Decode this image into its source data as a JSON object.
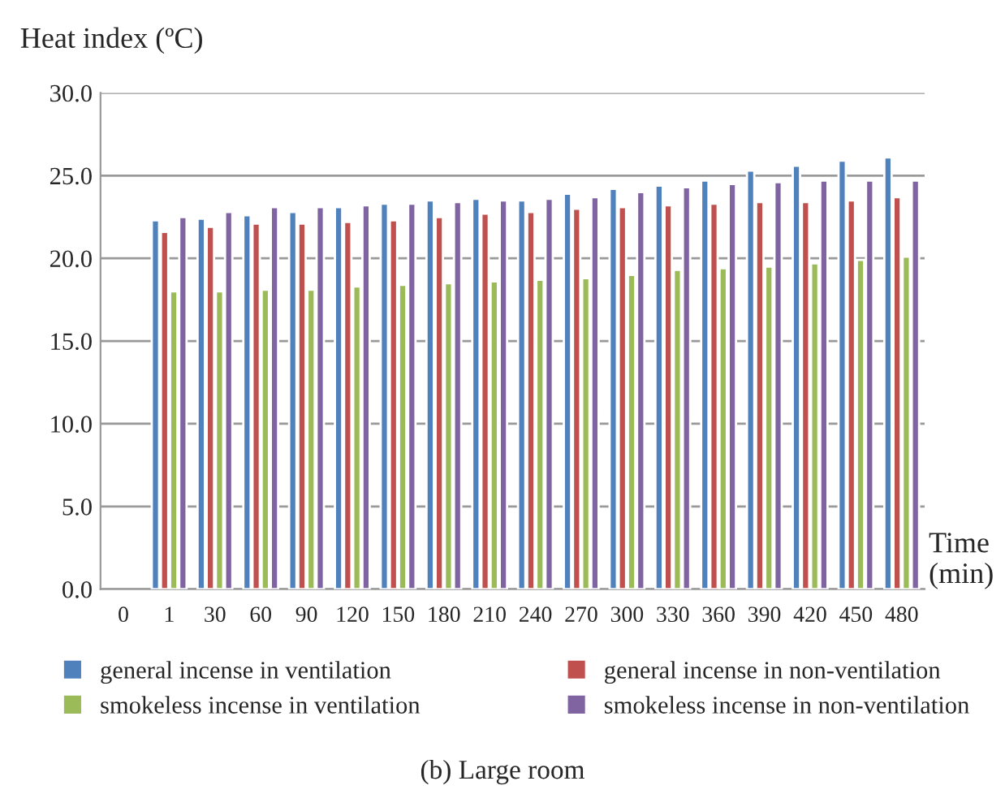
{
  "chart_data": {
    "type": "bar",
    "ylabel": "Heat index (ºC)",
    "xlabel": "Time\n(min)",
    "categories": [
      "0",
      "1",
      "30",
      "60",
      "90",
      "120",
      "150",
      "180",
      "210",
      "240",
      "270",
      "300",
      "330",
      "360",
      "390",
      "420",
      "450",
      "480"
    ],
    "series": [
      {
        "name": "general incense in ventilation",
        "color": "#4f81bd",
        "values": [
          null,
          22.3,
          22.4,
          22.6,
          22.8,
          23.1,
          23.3,
          23.5,
          23.6,
          23.5,
          23.9,
          24.2,
          24.4,
          24.7,
          25.3,
          25.6,
          25.9,
          26.1
        ]
      },
      {
        "name": "general incense in non-ventilation",
        "color": "#c0504d",
        "values": [
          null,
          21.6,
          21.9,
          22.1,
          22.1,
          22.2,
          22.3,
          22.5,
          22.7,
          22.8,
          23.0,
          23.1,
          23.2,
          23.3,
          23.4,
          23.4,
          23.5,
          23.7
        ]
      },
      {
        "name": "smokeless incense in ventilation",
        "color": "#9bbb59",
        "values": [
          null,
          18.0,
          18.0,
          18.1,
          18.1,
          18.3,
          18.4,
          18.5,
          18.6,
          18.7,
          18.8,
          19.0,
          19.3,
          19.4,
          19.5,
          19.7,
          19.9,
          20.1
        ]
      },
      {
        "name": "smokeless incense in non-ventilation",
        "color": "#8064a2",
        "values": [
          null,
          22.5,
          22.8,
          23.1,
          23.1,
          23.2,
          23.3,
          23.4,
          23.5,
          23.6,
          23.7,
          24.0,
          24.3,
          24.5,
          24.6,
          24.7,
          24.7,
          24.7
        ]
      }
    ],
    "ylim": [
      0,
      30
    ],
    "yticks": [
      {
        "value": 0,
        "label": "0.0"
      },
      {
        "value": 5,
        "label": "5.0"
      },
      {
        "value": 10,
        "label": "10.0"
      },
      {
        "value": 15,
        "label": "15.0"
      },
      {
        "value": 20,
        "label": "20.0"
      },
      {
        "value": 25,
        "label": "25.0"
      },
      {
        "value": 30,
        "label": "30.0"
      }
    ],
    "grid": "y",
    "legend": "bottom",
    "annotations": [
      "(b) Large room"
    ]
  }
}
